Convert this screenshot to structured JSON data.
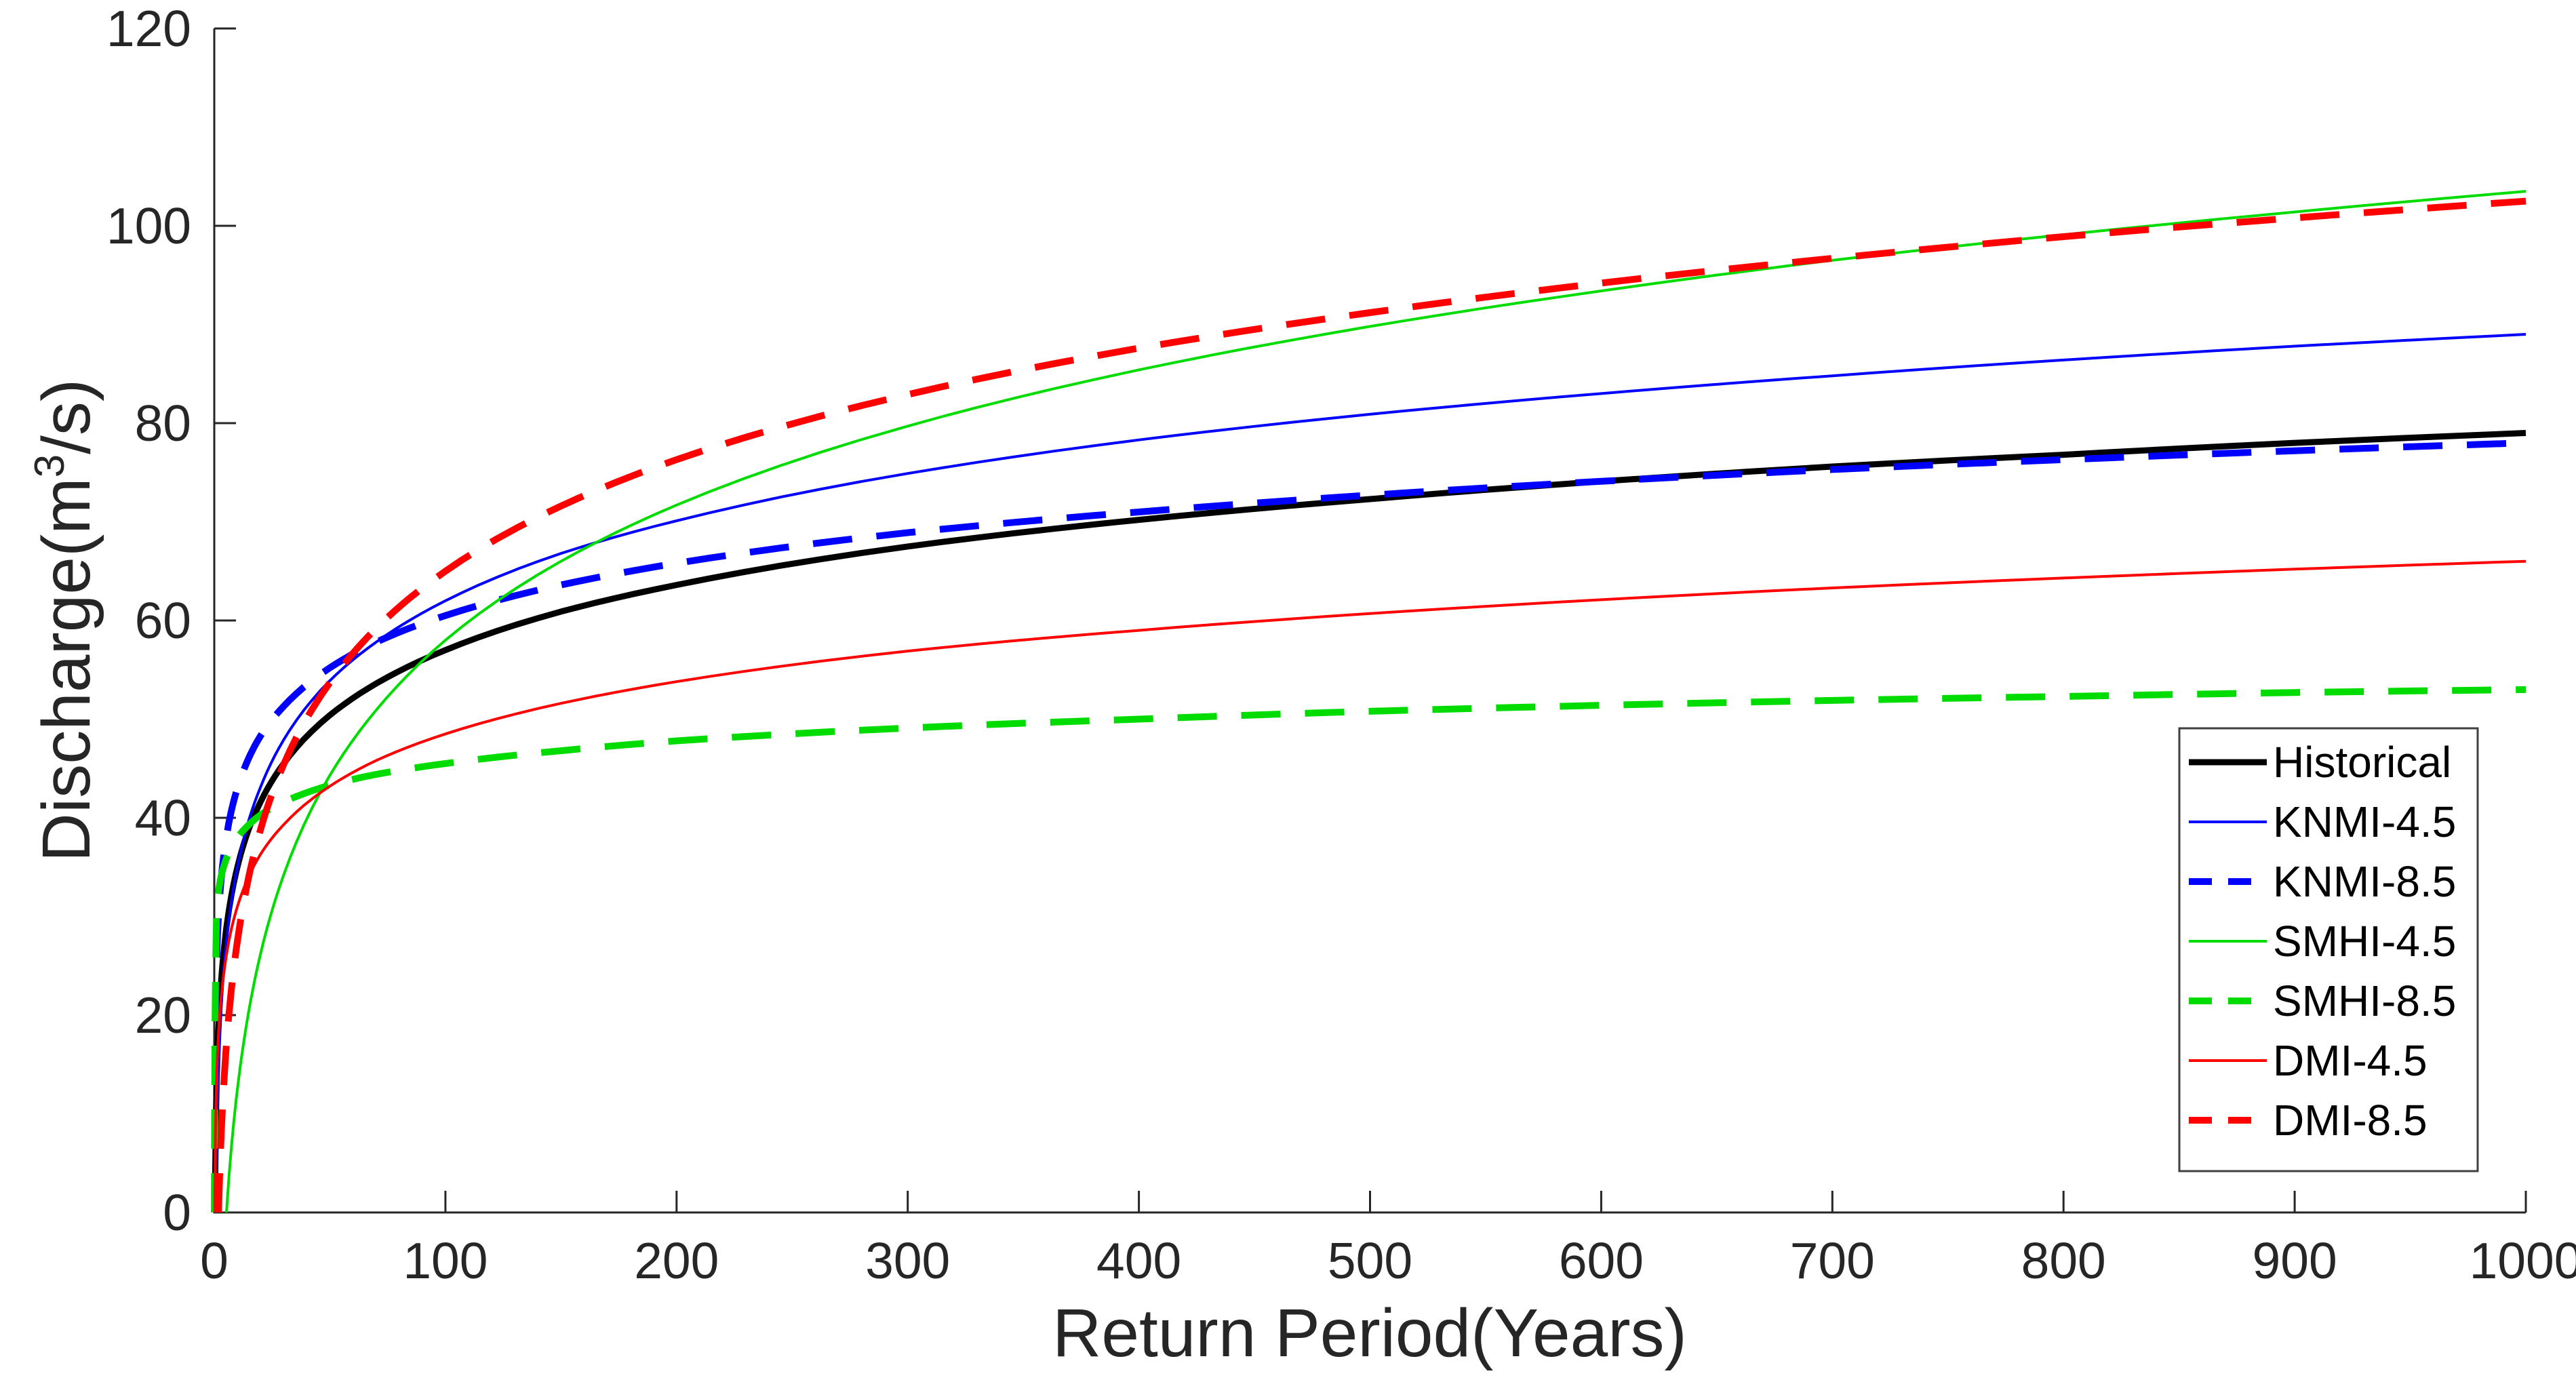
{
  "figure": {
    "background": "#ffffff",
    "axis_color": "#262626",
    "legend": {
      "border_color": "#404040",
      "background": "#ffffff"
    },
    "ylabel_parts": {
      "pre": "Discharge(m",
      "sup": "3",
      "post": "/s)"
    }
  },
  "chart_data": {
    "type": "line",
    "title": "",
    "xlabel": "Return Period(Years)",
    "ylabel": "Discharge(m^3/s)",
    "xlim": [
      0,
      1000
    ],
    "ylim": [
      0,
      120
    ],
    "x_ticks": [
      0,
      100,
      200,
      300,
      400,
      500,
      600,
      700,
      800,
      900,
      1000
    ],
    "y_ticks": [
      0,
      20,
      40,
      60,
      80,
      100,
      120
    ],
    "grid": false,
    "legend_position": "lower-right",
    "series": [
      {
        "name": "Historical",
        "color": "#000000",
        "line_style": "solid",
        "line_width": 9,
        "points": [
          [
            0.3,
            0
          ],
          [
            1,
            13
          ],
          [
            2,
            19.6
          ],
          [
            3,
            23.5
          ],
          [
            5,
            28.4
          ],
          [
            7,
            31.6
          ],
          [
            10,
            35
          ],
          [
            15,
            38.9
          ],
          [
            20,
            41.6
          ],
          [
            30,
            45.5
          ],
          [
            50,
            50.4
          ],
          [
            70,
            53.6
          ],
          [
            100,
            57
          ],
          [
            150,
            60.9
          ],
          [
            200,
            63.6
          ],
          [
            300,
            67.5
          ],
          [
            400,
            70.2
          ],
          [
            500,
            72.3
          ],
          [
            600,
            74.1
          ],
          [
            700,
            75.6
          ],
          [
            800,
            76.8
          ],
          [
            900,
            78
          ],
          [
            1000,
            79
          ]
        ]
      },
      {
        "name": "KNMI-4.5",
        "color": "#0000ff",
        "line_style": "solid",
        "line_width": 4,
        "points": [
          [
            0.5,
            0
          ],
          [
            1,
            8
          ],
          [
            2,
            16.1
          ],
          [
            3,
            20.9
          ],
          [
            5,
            26.9
          ],
          [
            7,
            30.8
          ],
          [
            10,
            35
          ],
          [
            15,
            39.8
          ],
          [
            20,
            43.1
          ],
          [
            30,
            47.9
          ],
          [
            50,
            53.9
          ],
          [
            70,
            57.8
          ],
          [
            100,
            62
          ],
          [
            150,
            66.8
          ],
          [
            200,
            70.1
          ],
          [
            300,
            74.9
          ],
          [
            400,
            78.3
          ],
          [
            500,
            80.9
          ],
          [
            600,
            83
          ],
          [
            700,
            84.8
          ],
          [
            800,
            86.4
          ],
          [
            900,
            87.8
          ],
          [
            1000,
            89
          ]
        ]
      },
      {
        "name": "KNMI-8.5",
        "color": "#0000ff",
        "line_style": "dashed",
        "line_width": 10,
        "points": [
          [
            0.1,
            0
          ],
          [
            1,
            25.5
          ],
          [
            2,
            30.8
          ],
          [
            3,
            33.8
          ],
          [
            5,
            37.7
          ],
          [
            7,
            40.3
          ],
          [
            10,
            43
          ],
          [
            15,
            46.1
          ],
          [
            20,
            48.3
          ],
          [
            30,
            51.3
          ],
          [
            50,
            55.2
          ],
          [
            70,
            57.8
          ],
          [
            100,
            60.5
          ],
          [
            150,
            63.6
          ],
          [
            200,
            65.8
          ],
          [
            300,
            68.9
          ],
          [
            400,
            71
          ],
          [
            500,
            72.7
          ],
          [
            600,
            74.1
          ],
          [
            700,
            75.3
          ],
          [
            800,
            76.3
          ],
          [
            900,
            77.2
          ],
          [
            1000,
            78
          ]
        ]
      },
      {
        "name": "SMHI-4.5",
        "color": "#00dc00",
        "line_style": "solid",
        "line_width": 4,
        "points": [
          [
            5.3,
            0
          ],
          [
            7,
            5.5
          ],
          [
            10,
            12.5
          ],
          [
            15,
            20.5
          ],
          [
            20,
            26.2
          ],
          [
            30,
            34.2
          ],
          [
            50,
            44.3
          ],
          [
            70,
            50.9
          ],
          [
            100,
            58
          ],
          [
            150,
            66
          ],
          [
            200,
            71.7
          ],
          [
            300,
            79.7
          ],
          [
            400,
            85.4
          ],
          [
            500,
            89.8
          ],
          [
            600,
            93.4
          ],
          [
            700,
            96.5
          ],
          [
            800,
            99.1
          ],
          [
            900,
            101.4
          ],
          [
            1000,
            103.5
          ]
        ]
      },
      {
        "name": "SMHI-8.5",
        "color": "#00dc00",
        "line_style": "dashed",
        "line_width": 10,
        "points": [
          [
            0.05,
            0
          ],
          [
            1,
            30.5
          ],
          [
            2,
            32.8
          ],
          [
            3,
            34.1
          ],
          [
            5,
            35.7
          ],
          [
            7,
            36.8
          ],
          [
            10,
            38
          ],
          [
            15,
            39.3
          ],
          [
            20,
            40.3
          ],
          [
            30,
            41.6
          ],
          [
            50,
            43.3
          ],
          [
            70,
            44.4
          ],
          [
            100,
            45.5
          ],
          [
            150,
            46.8
          ],
          [
            200,
            47.8
          ],
          [
            300,
            49.1
          ],
          [
            400,
            50
          ],
          [
            500,
            50.8
          ],
          [
            600,
            51.4
          ],
          [
            700,
            51.9
          ],
          [
            800,
            52.3
          ],
          [
            900,
            52.7
          ],
          [
            1000,
            53
          ]
        ]
      },
      {
        "name": "DMI-4.5",
        "color": "#ff0000",
        "line_style": "solid",
        "line_width": 4,
        "points": [
          [
            0.2,
            0
          ],
          [
            1,
            13.5
          ],
          [
            2,
            18.8
          ],
          [
            3,
            21.8
          ],
          [
            5,
            25.7
          ],
          [
            7,
            28.3
          ],
          [
            10,
            31
          ],
          [
            15,
            34.1
          ],
          [
            20,
            36.3
          ],
          [
            30,
            39.3
          ],
          [
            50,
            43.2
          ],
          [
            70,
            45.8
          ],
          [
            100,
            48.5
          ],
          [
            150,
            51.6
          ],
          [
            200,
            53.8
          ],
          [
            300,
            56.9
          ],
          [
            400,
            59
          ],
          [
            500,
            60.7
          ],
          [
            600,
            62.1
          ],
          [
            700,
            63.3
          ],
          [
            800,
            64.3
          ],
          [
            900,
            65.2
          ],
          [
            1000,
            66
          ]
        ]
      },
      {
        "name": "DMI-8.5",
        "color": "#ff0000",
        "line_style": "dashed",
        "line_width": 10,
        "points": [
          [
            1.85,
            0
          ],
          [
            3,
            7.9
          ],
          [
            5,
            16.2
          ],
          [
            7,
            21.7
          ],
          [
            10,
            27.5
          ],
          [
            15,
            34.1
          ],
          [
            20,
            38.8
          ],
          [
            30,
            45.4
          ],
          [
            50,
            53.7
          ],
          [
            70,
            59.2
          ],
          [
            100,
            65
          ],
          [
            150,
            71.6
          ],
          [
            200,
            76.3
          ],
          [
            300,
            82.9
          ],
          [
            400,
            87.6
          ],
          [
            500,
            91.2
          ],
          [
            600,
            94.2
          ],
          [
            700,
            96.7
          ],
          [
            800,
            98.9
          ],
          [
            900,
            100.8
          ],
          [
            1000,
            102.5
          ]
        ]
      }
    ]
  }
}
